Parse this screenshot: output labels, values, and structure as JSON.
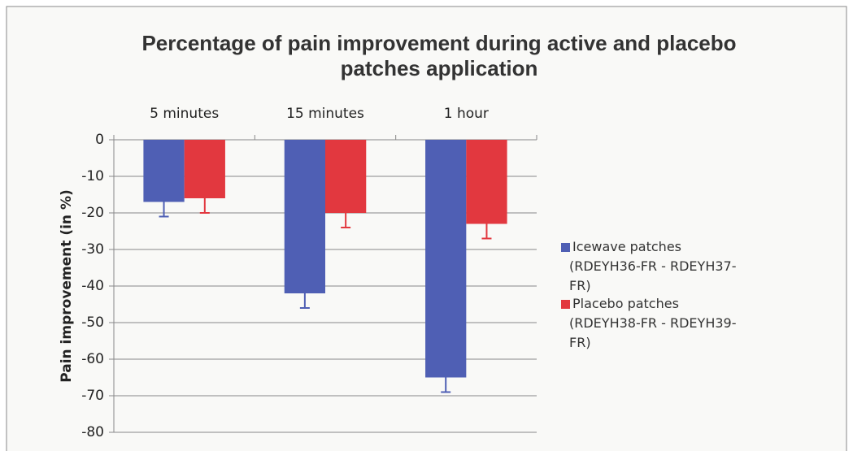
{
  "chart_data": {
    "type": "bar",
    "title": "Percentage of pain improvement during active and placebo patches application",
    "categories": [
      "5 minutes",
      "15 minutes",
      "1 hour"
    ],
    "y_label": "Pain improvement (in %)",
    "series": [
      {
        "name": "Icewave patches (RDEYH36-FR - RDEYH37-FR)",
        "color": "#4f5fb4",
        "values": [
          -17,
          -42,
          -65
        ],
        "errors": [
          4,
          4,
          4
        ]
      },
      {
        "name": "Placebo patches (RDEYH38-FR - RDEYH39-FR)",
        "color": "#e2383f",
        "values": [
          -16,
          -20,
          -23
        ],
        "errors": [
          4,
          4,
          4
        ]
      }
    ],
    "ylim": [
      -80,
      0
    ],
    "yticks": [
      0,
      -10,
      -20,
      -30,
      -40,
      -50,
      -60,
      -70,
      -80
    ],
    "grid": true,
    "legend": "right"
  }
}
